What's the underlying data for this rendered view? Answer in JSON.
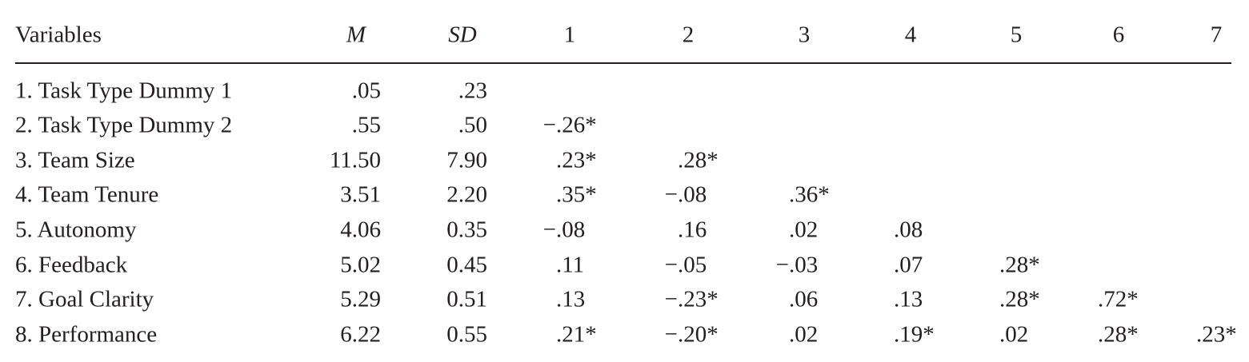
{
  "table": {
    "headers": {
      "variables": "Variables",
      "m": "M",
      "sd": "SD",
      "corr": [
        "1",
        "2",
        "3",
        "4",
        "5",
        "6",
        "7"
      ]
    },
    "rows": [
      {
        "label": "1. Task Type Dummy 1",
        "m": ".05",
        "sd": ".23",
        "corr": []
      },
      {
        "label": "2. Task Type Dummy 2",
        "m": ".55",
        "sd": ".50",
        "corr": [
          "−.26*"
        ]
      },
      {
        "label": "3. Team Size",
        "m": "11.50",
        "sd": "7.90",
        "corr": [
          ".23*",
          ".28*"
        ]
      },
      {
        "label": "4. Team Tenure",
        "m": "3.51",
        "sd": "2.20",
        "corr": [
          ".35*",
          "−.08",
          ".36*"
        ]
      },
      {
        "label": "5. Autonomy",
        "m": "4.06",
        "sd": "0.35",
        "corr": [
          "−.08",
          ".16",
          ".02",
          ".08"
        ]
      },
      {
        "label": "6. Feedback",
        "m": "5.02",
        "sd": "0.45",
        "corr": [
          ".11",
          "−.05",
          "−.03",
          ".07",
          ".28*"
        ]
      },
      {
        "label": "7. Goal Clarity",
        "m": "5.29",
        "sd": "0.51",
        "corr": [
          ".13",
          "−.23*",
          ".06",
          ".13",
          ".28*",
          ".72*"
        ]
      },
      {
        "label": "8. Performance",
        "m": "6.22",
        "sd": "0.55",
        "corr": [
          ".21*",
          "−.20*",
          ".02",
          ".19*",
          ".02",
          ".28*",
          ".23*"
        ]
      }
    ]
  }
}
